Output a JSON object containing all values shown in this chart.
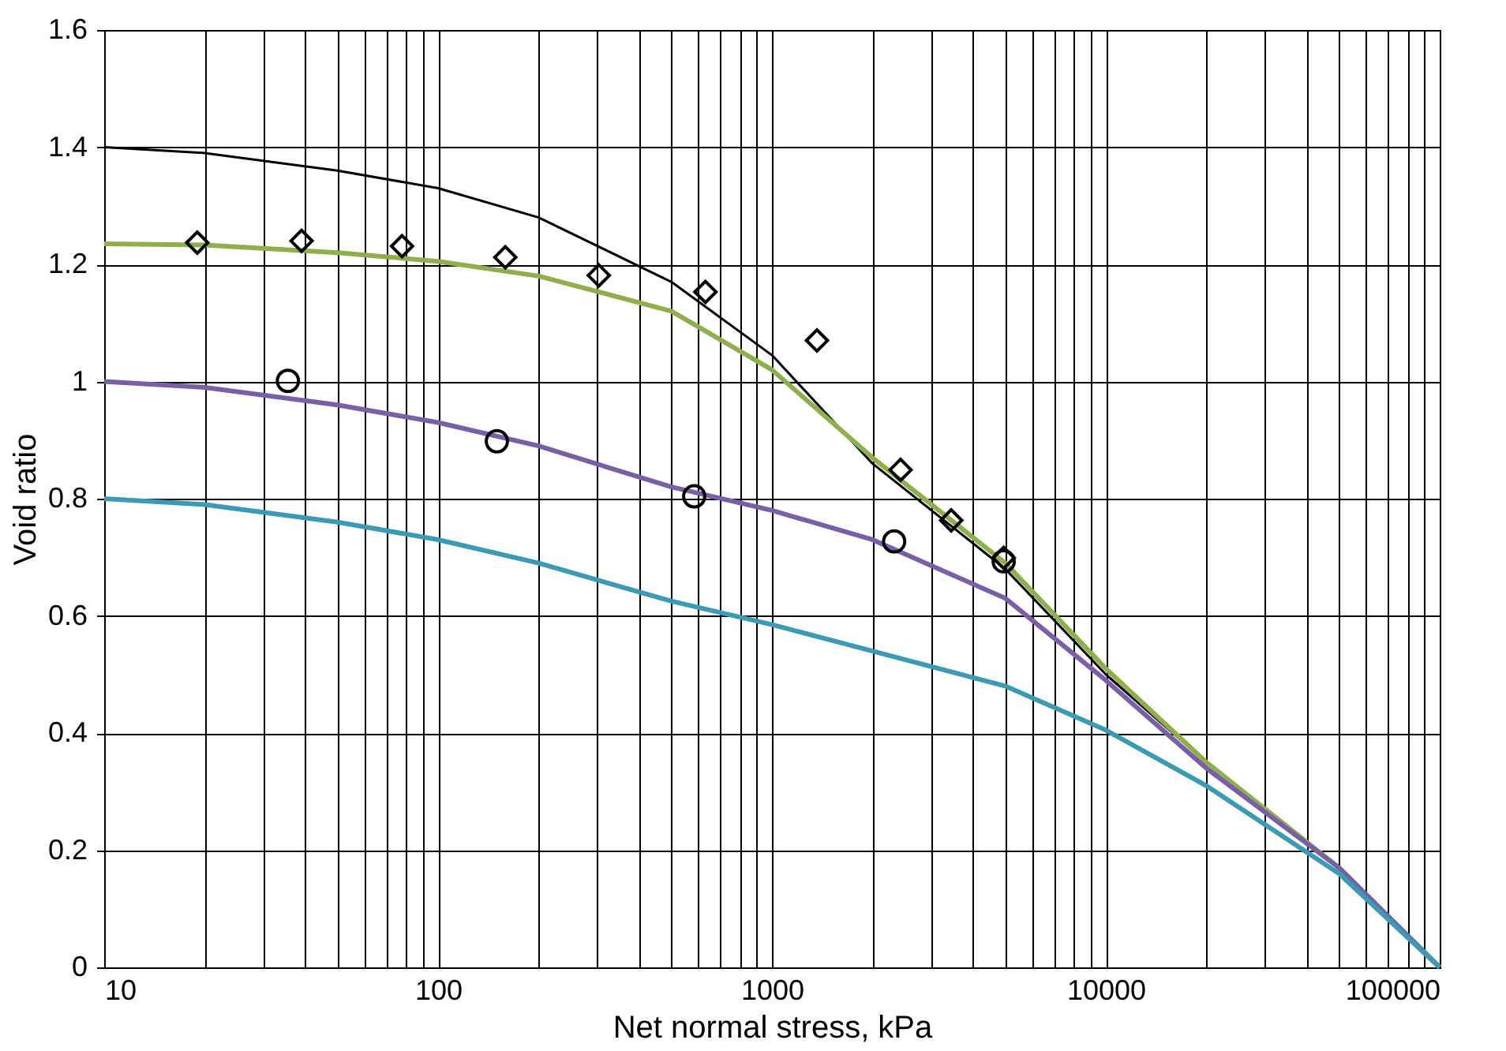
{
  "chart_data": {
    "type": "line",
    "xlabel": "Net normal stress, kPa",
    "ylabel": "Void ratio",
    "log": "x",
    "grid": true,
    "x": [
      10,
      20,
      50,
      100,
      200,
      500,
      1000,
      2000,
      5000,
      10000,
      20000,
      50000,
      100000
    ],
    "series": [
      {
        "color": "#000000",
        "values": [
          1.4,
          1.39,
          1.36,
          1.33,
          1.28,
          1.17,
          1.045,
          0.86,
          0.68,
          0.5,
          0.35,
          0.17,
          0
        ]
      },
      {
        "color": "#8db04a",
        "values": [
          1.235,
          1.233,
          1.22,
          1.205,
          1.18,
          1.12,
          1.02,
          0.87,
          0.69,
          0.51,
          0.35,
          0.17,
          0
        ]
      },
      {
        "color": "#7a5ea8",
        "values": [
          1.0,
          0.99,
          0.96,
          0.93,
          0.89,
          0.82,
          0.78,
          0.73,
          0.63,
          0.49,
          0.34,
          0.17,
          0
        ]
      },
      {
        "color": "#3a9bb5",
        "values": [
          0.8,
          0.79,
          0.76,
          0.73,
          0.69,
          0.625,
          0.585,
          0.54,
          0.48,
          0.405,
          0.31,
          0.16,
          0
        ]
      },
      {
        "type": "scatter",
        "marker": "circle",
        "color": "#000000",
        "x": [
          35.5,
          150,
          585,
          2323,
          4944
        ],
        "values": [
          1.001,
          0.898,
          0.804,
          0.727,
          0.693
        ]
      },
      {
        "type": "scatter",
        "marker": "diamond",
        "color": "#000000",
        "x": [
          19,
          39,
          78,
          159,
          303,
          632,
          1364,
          2427,
          3443,
          4944
        ],
        "values": [
          1.237,
          1.24,
          1.231,
          1.212,
          1.181,
          1.153,
          1.07,
          0.849,
          0.763,
          0.699
        ]
      }
    ],
    "xlim": [
      10,
      100000
    ],
    "xticks": [
      10,
      {
        "value": 20,
        "label": null
      },
      {
        "value": 30,
        "label": null
      },
      {
        "value": 40,
        "label": null
      },
      {
        "value": 50,
        "label": null
      },
      {
        "value": 60,
        "label": null
      },
      {
        "value": 70,
        "label": null
      },
      {
        "value": 80,
        "label": null
      },
      {
        "value": 90,
        "label": null
      },
      100,
      {
        "value": 200,
        "label": null
      },
      {
        "value": 300,
        "label": null
      },
      {
        "value": 400,
        "label": null
      },
      {
        "value": 500,
        "label": null
      },
      {
        "value": 600,
        "label": null
      },
      {
        "value": 700,
        "label": null
      },
      {
        "value": 800,
        "label": null
      },
      {
        "value": 900,
        "label": null
      },
      1000,
      {
        "value": 2000,
        "label": null
      },
      {
        "value": 3000,
        "label": null
      },
      {
        "value": 4000,
        "label": null
      },
      {
        "value": 5000,
        "label": null
      },
      {
        "value": 6000,
        "label": null
      },
      {
        "value": 7000,
        "label": null
      },
      {
        "value": 8000,
        "label": null
      },
      {
        "value": 9000,
        "label": null
      },
      10000,
      {
        "value": 20000,
        "label": null
      },
      {
        "value": 30000,
        "label": null
      },
      {
        "value": 40000,
        "label": null
      },
      {
        "value": 50000,
        "label": null
      },
      {
        "value": 60000,
        "label": null
      },
      {
        "value": 70000,
        "label": null
      },
      {
        "value": 80000,
        "label": null
      },
      {
        "value": 90000,
        "label": null
      },
      100000
    ],
    "ylim": [
      0,
      1.6
    ],
    "yticks": [
      0,
      0.2,
      0.4,
      0.6,
      0.8,
      1,
      1.2,
      1.4,
      1.6
    ]
  }
}
